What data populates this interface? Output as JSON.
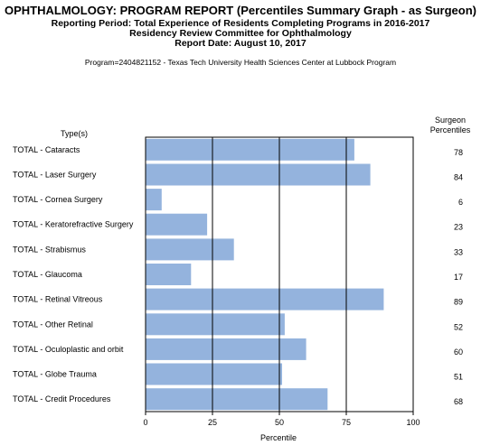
{
  "header": {
    "title": "OPHTHALMOLOGY: PROGRAM REPORT (Percentiles Summary Graph - as Surgeon)",
    "line1": "Reporting Period: Total Experience of Residents Completing Programs in 2016-2017",
    "line2": "Residency Review Committee for Ophthalmology",
    "line3": "Report Date: August 10, 2017",
    "program": "Program=2404821152 - Texas Tech University Health Sciences Center at Lubbock Program"
  },
  "chart_data": {
    "type": "bar",
    "orientation": "horizontal",
    "categories_header": "Type(s)",
    "values_header": "Surgeon Percentiles",
    "categories": [
      "TOTAL - Cataracts",
      "TOTAL - Laser Surgery",
      "TOTAL - Cornea Surgery",
      "TOTAL - Keratorefractive Surgery",
      "TOTAL - Strabismus",
      "TOTAL - Glaucoma",
      "TOTAL - Retinal Vitreous",
      "TOTAL - Other Retinal",
      "TOTAL - Oculoplastic and orbit",
      "TOTAL - Globe Trauma",
      "TOTAL - Credit Procedures"
    ],
    "values": [
      78,
      84,
      6,
      23,
      33,
      17,
      89,
      52,
      60,
      51,
      68
    ],
    "xlabel": "Percentile",
    "xlim": [
      0,
      100
    ],
    "xticks": [
      0,
      25,
      50,
      75,
      100
    ],
    "grid": true,
    "bar_color": "#94b3dd"
  }
}
